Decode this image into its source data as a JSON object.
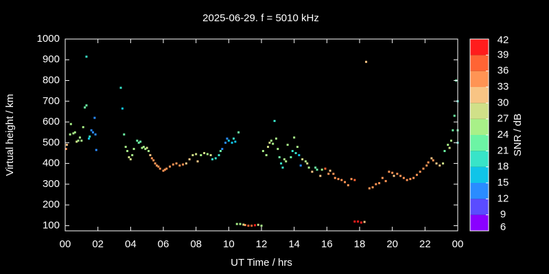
{
  "chart_data": {
    "type": "scatter",
    "title": "2025-06-29. f = 5010 kHz",
    "x_label": "UT Time / hrs",
    "y_label": "Virtual height / km",
    "colorbar_label": "SNR / dB",
    "xlim": [
      0,
      24
    ],
    "xticks": [
      {
        "value": 0,
        "label": "00"
      },
      {
        "value": 2,
        "label": "02"
      },
      {
        "value": 4,
        "label": "04"
      },
      {
        "value": 6,
        "label": "06"
      },
      {
        "value": 8,
        "label": "08"
      },
      10,
      12,
      14,
      16,
      18,
      20,
      22,
      {
        "value": 24,
        "label": "00"
      }
    ],
    "ylim": [
      75,
      1000
    ],
    "yticks": [
      100,
      200,
      300,
      400,
      500,
      600,
      700,
      800,
      900,
      1000
    ],
    "clim": [
      6,
      42
    ],
    "cticks": [
      6,
      9,
      12,
      15,
      18,
      21,
      24,
      27,
      30,
      33,
      36,
      39,
      42
    ],
    "colors": [
      "#8a00ff",
      "#5a4cff",
      "#2a8cff",
      "#10c4e8",
      "#38e4c8",
      "#6cf4a4",
      "#a8f088",
      "#d0e088",
      "#f8c484",
      "#ff9454",
      "#ff6434",
      "#ff1c1c"
    ],
    "x": [
      0.05,
      0.1,
      0.3,
      0.35,
      0.5,
      0.6,
      0.7,
      0.8,
      0.9,
      1.0,
      1.1,
      1.2,
      1.3,
      1.3,
      1.45,
      1.5,
      1.6,
      1.7,
      1.8,
      1.85,
      1.9,
      3.4,
      3.5,
      3.6,
      3.7,
      3.8,
      3.9,
      4.0,
      4.1,
      4.2,
      4.4,
      4.5,
      4.6,
      4.7,
      4.8,
      4.9,
      5.0,
      5.1,
      5.2,
      5.3,
      5.4,
      5.5,
      5.6,
      5.7,
      5.8,
      6.0,
      6.1,
      6.2,
      6.4,
      6.6,
      6.8,
      7.0,
      7.2,
      7.4,
      7.6,
      7.8,
      8.0,
      8.1,
      8.3,
      8.5,
      8.7,
      8.9,
      9.0,
      9.2,
      9.4,
      9.5,
      9.6,
      9.8,
      9.9,
      10.0,
      10.2,
      10.3,
      10.4,
      10.6,
      10.5,
      10.7,
      10.9,
      11.0,
      11.2,
      11.4,
      11.6,
      11.8,
      12.0,
      12.1,
      12.3,
      12.4,
      12.5,
      12.6,
      12.7,
      12.8,
      12.9,
      13.0,
      13.1,
      13.2,
      13.3,
      13.4,
      13.5,
      13.6,
      13.8,
      13.9,
      14.0,
      14.1,
      14.2,
      14.3,
      14.4,
      14.5,
      14.7,
      14.8,
      14.9,
      15.1,
      15.3,
      15.4,
      15.6,
      15.7,
      15.9,
      16.1,
      16.2,
      16.4,
      16.5,
      16.7,
      16.9,
      17.1,
      17.3,
      17.5,
      17.7,
      17.7,
      17.9,
      18.1,
      18.3,
      18.4,
      18.6,
      18.8,
      19.0,
      19.2,
      19.4,
      19.6,
      19.8,
      20.0,
      20.1,
      20.3,
      20.5,
      20.7,
      20.9,
      21.1,
      21.3,
      21.5,
      21.7,
      21.9,
      22.1,
      22.2,
      22.4,
      22.5,
      22.7,
      22.9,
      23.1,
      23.2,
      23.4,
      23.5,
      23.6,
      23.7,
      23.8,
      23.9,
      24.0,
      24.0,
      24.0
    ],
    "values": [
      470,
      490,
      540,
      590,
      545,
      550,
      505,
      510,
      525,
      510,
      575,
      670,
      680,
      915,
      520,
      530,
      560,
      550,
      620,
      540,
      465,
      765,
      665,
      540,
      480,
      460,
      430,
      420,
      440,
      470,
      510,
      500,
      505,
      475,
      480,
      470,
      475,
      460,
      440,
      425,
      415,
      400,
      390,
      385,
      375,
      365,
      370,
      375,
      385,
      395,
      400,
      390,
      395,
      400,
      420,
      440,
      445,
      410,
      440,
      450,
      445,
      440,
      420,
      425,
      440,
      460,
      470,
      500,
      520,
      510,
      500,
      520,
      505,
      550,
      108,
      108,
      105,
      103,
      100,
      100,
      102,
      104,
      100,
      460,
      440,
      480,
      500,
      510,
      495,
      605,
      520,
      470,
      430,
      400,
      380,
      420,
      410,
      490,
      430,
      460,
      525,
      450,
      480,
      440,
      390,
      420,
      410,
      400,
      380,
      360,
      380,
      370,
      340,
      370,
      375,
      350,
      365,
      350,
      330,
      325,
      320,
      310,
      295,
      325,
      320,
      120,
      120,
      115,
      118,
      890,
      280,
      285,
      300,
      305,
      330,
      315,
      360,
      355,
      340,
      350,
      340,
      330,
      320,
      325,
      330,
      345,
      360,
      375,
      390,
      405,
      425,
      415,
      400,
      390,
      400,
      460,
      490,
      475,
      510,
      560,
      630,
      800,
      700,
      560,
      500
    ],
    "snr": [
      33,
      30,
      24,
      24,
      24,
      24,
      27,
      24,
      24,
      24,
      24,
      21,
      21,
      18,
      15,
      18,
      12,
      12,
      12,
      12,
      12,
      18,
      15,
      21,
      24,
      24,
      27,
      27,
      24,
      24,
      21,
      21,
      21,
      24,
      24,
      24,
      27,
      24,
      30,
      33,
      33,
      33,
      33,
      33,
      33,
      33,
      33,
      33,
      33,
      33,
      33,
      33,
      33,
      30,
      30,
      27,
      27,
      30,
      24,
      27,
      24,
      27,
      18,
      18,
      18,
      21,
      12,
      12,
      12,
      15,
      15,
      18,
      15,
      21,
      24,
      24,
      27,
      33,
      36,
      36,
      39,
      27,
      24,
      24,
      24,
      27,
      27,
      24,
      24,
      18,
      24,
      24,
      21,
      18,
      18,
      24,
      24,
      24,
      21,
      18,
      24,
      18,
      24,
      15,
      12,
      27,
      24,
      27,
      24,
      30,
      21,
      21,
      30,
      24,
      36,
      33,
      30,
      33,
      33,
      33,
      33,
      33,
      33,
      33,
      36,
      39,
      39,
      39,
      30,
      30,
      33,
      33,
      33,
      33,
      33,
      33,
      33,
      33,
      30,
      33,
      33,
      33,
      33,
      33,
      33,
      33,
      33,
      33,
      33,
      33,
      30,
      33,
      30,
      30,
      27,
      21,
      24,
      27,
      24,
      21,
      21,
      21,
      18,
      21,
      18
    ]
  }
}
